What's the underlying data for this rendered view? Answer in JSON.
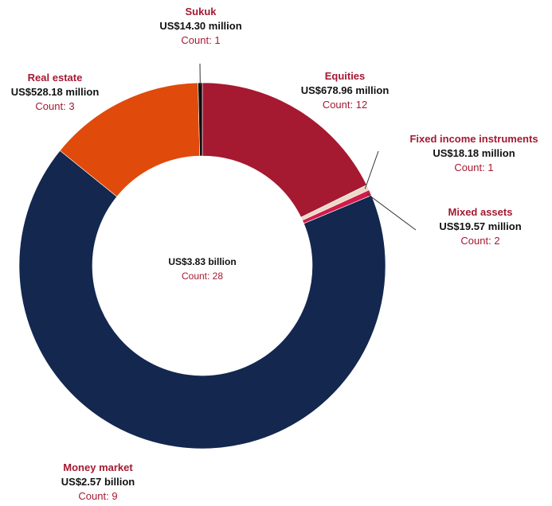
{
  "chart_data": {
    "type": "pie",
    "donut": true,
    "center": {
      "value": "US$3.83 billion",
      "count": "Count: 28"
    },
    "slices": [
      {
        "name": "Equities",
        "value_label": "US$678.96 million",
        "count": "Count: 12",
        "value": 678.96,
        "color": "#a51931"
      },
      {
        "name": "Fixed income instruments",
        "value_label": "US$18.18 million",
        "count": "Count: 1",
        "value": 18.18,
        "color": "#ecd9c6"
      },
      {
        "name": "Mixed assets",
        "value_label": "US$19.57 million",
        "count": "Count: 2",
        "value": 19.57,
        "color": "#d01c4b"
      },
      {
        "name": "Money market",
        "value_label": "US$2.57 billion",
        "count": "Count: 9",
        "value": 2570,
        "color": "#13274f"
      },
      {
        "name": "Real estate",
        "value_label": "US$528.18 million",
        "count": "Count: 3",
        "value": 528.18,
        "color": "#e04a0b"
      },
      {
        "name": "Sukuk",
        "value_label": "US$14.30 million",
        "count": "Count: 1",
        "value": 14.3,
        "color": "#0b0b0b"
      }
    ]
  },
  "colors": {
    "label_name": "#a51931",
    "count_text": "#a51931",
    "value_text": "#111111"
  }
}
